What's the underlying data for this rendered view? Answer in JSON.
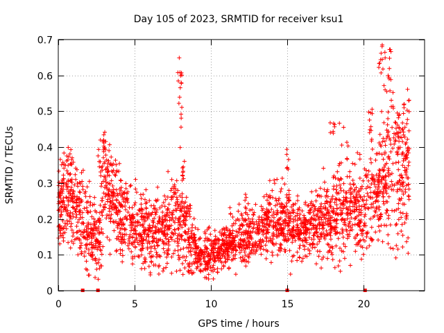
{
  "chart_data": {
    "type": "scatter",
    "title": "Day 105 of 2023, SRMTID for receiver ksu1",
    "xlabel": "GPS time / hours",
    "ylabel": "SRMTID / TECUs",
    "xlim": [
      0,
      24
    ],
    "ylim": [
      0,
      0.7
    ],
    "x_ticks": [
      0,
      5,
      10,
      15,
      20
    ],
    "x_tick_labels": [
      "0",
      "5",
      "10",
      "15",
      "20"
    ],
    "y_ticks": [
      0,
      0.1,
      0.2,
      0.3,
      0.4,
      0.5,
      0.6,
      0.7
    ],
    "y_tick_labels": [
      "0",
      "0.1",
      "0.2",
      "0.3",
      "0.4",
      "0.5",
      "0.6",
      "0.7"
    ],
    "grid": true,
    "marker": "+",
    "series_color": "#ff0000",
    "profile": [
      [
        0.0,
        0.23,
        0.05
      ],
      [
        1.0,
        0.24,
        0.06
      ],
      [
        2.0,
        0.17,
        0.06
      ],
      [
        2.7,
        0.14,
        0.05
      ],
      [
        3.0,
        0.3,
        0.07
      ],
      [
        4.0,
        0.22,
        0.06
      ],
      [
        5.0,
        0.18,
        0.05
      ],
      [
        6.0,
        0.16,
        0.05
      ],
      [
        7.0,
        0.17,
        0.05
      ],
      [
        7.8,
        0.22,
        0.07
      ],
      [
        8.5,
        0.17,
        0.06
      ],
      [
        9.0,
        0.11,
        0.03
      ],
      [
        9.5,
        0.1,
        0.03
      ],
      [
        10.0,
        0.1,
        0.03
      ],
      [
        11.0,
        0.13,
        0.03
      ],
      [
        12.0,
        0.15,
        0.04
      ],
      [
        13.0,
        0.16,
        0.04
      ],
      [
        14.0,
        0.19,
        0.05
      ],
      [
        15.0,
        0.19,
        0.05
      ],
      [
        16.0,
        0.17,
        0.04
      ],
      [
        17.0,
        0.2,
        0.05
      ],
      [
        18.0,
        0.2,
        0.05
      ],
      [
        19.0,
        0.22,
        0.06
      ],
      [
        20.0,
        0.23,
        0.06
      ],
      [
        21.0,
        0.28,
        0.06
      ],
      [
        21.6,
        0.33,
        0.1
      ],
      [
        22.0,
        0.3,
        0.1
      ],
      [
        23.0,
        0.33,
        0.09
      ]
    ],
    "bursts": [
      {
        "x_range": [
          0.2,
          1.0
        ],
        "y_range": [
          0.3,
          0.4
        ],
        "count": 20
      },
      {
        "x_range": [
          2.6,
          3.2
        ],
        "y_range": [
          0.33,
          0.42
        ],
        "count": 18
      },
      {
        "x_range": [
          7.8,
          8.1
        ],
        "y_range": [
          0.45,
          0.65
        ],
        "count": 16
      },
      {
        "x_range": [
          8.1,
          8.3
        ],
        "y_range": [
          0.3,
          0.4
        ],
        "count": 8
      },
      {
        "x_range": [
          14.9,
          15.2
        ],
        "y_range": [
          0.33,
          0.41
        ],
        "count": 6
      },
      {
        "x_range": [
          17.8,
          19.0
        ],
        "y_range": [
          0.3,
          0.48
        ],
        "count": 22
      },
      {
        "x_range": [
          20.3,
          20.6
        ],
        "y_range": [
          0.4,
          0.54
        ],
        "count": 10
      },
      {
        "x_range": [
          21.0,
          21.8
        ],
        "y_range": [
          0.55,
          0.69
        ],
        "count": 24
      },
      {
        "x_range": [
          21.8,
          22.3
        ],
        "y_range": [
          0.4,
          0.52
        ],
        "count": 14
      },
      {
        "x_range": [
          22.3,
          23.0
        ],
        "y_range": [
          0.4,
          0.53
        ],
        "count": 16
      }
    ],
    "baseline_markers_x": [
      1.6,
      2.6,
      15.0,
      20.1
    ],
    "scatter_count": 2800,
    "seed": 105
  }
}
